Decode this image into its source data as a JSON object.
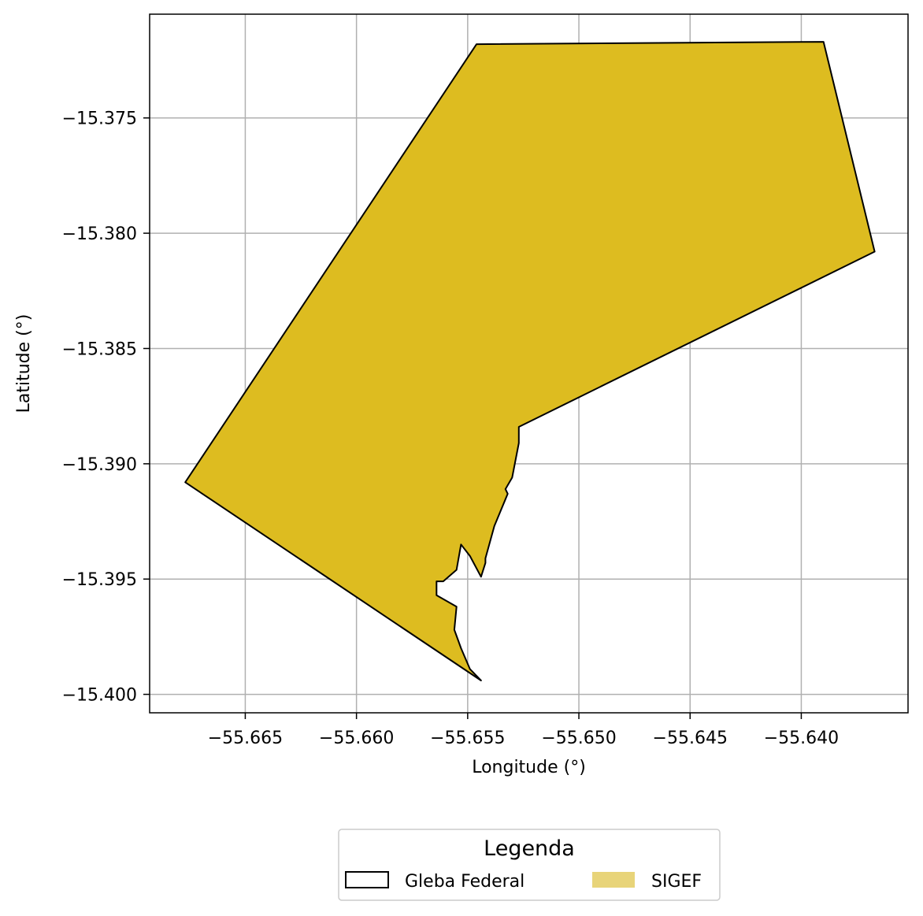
{
  "chart_data": {
    "type": "map",
    "xlabel": "Longitude (°)",
    "ylabel": "Latitude (°)",
    "xlim": [
      -55.6693,
      -55.6352
    ],
    "ylim": [
      -15.4008,
      -15.3705
    ],
    "x_ticks": [
      -55.665,
      -55.66,
      -55.655,
      -55.65,
      -55.645,
      -55.64
    ],
    "x_tick_labels": [
      "−55.665",
      "−55.660",
      "−55.655",
      "−55.650",
      "−55.645",
      "−55.640"
    ],
    "y_ticks": [
      -15.375,
      -15.38,
      -15.385,
      -15.39,
      -15.395,
      -15.4
    ],
    "y_tick_labels": [
      "−15.375",
      "−15.380",
      "−15.385",
      "−15.390",
      "−15.395",
      "−15.400"
    ],
    "grid": true,
    "legend": {
      "title": "Legenda",
      "placement": "bottom-center",
      "entries": [
        {
          "label": "Gleba Federal",
          "style": "outline",
          "color": "#000000"
        },
        {
          "label": "SIGEF",
          "style": "fill",
          "color": "#e8d479"
        }
      ]
    },
    "layers": [
      {
        "name": "SIGEF",
        "fill": "#ddbc20",
        "stroke": "#000000",
        "polygon": [
          [
            -55.6546,
            -15.3718
          ],
          [
            -55.639,
            -15.3717
          ],
          [
            -55.6367,
            -15.3808
          ],
          [
            -55.6527,
            -15.3884
          ],
          [
            -55.6527,
            -15.3891
          ],
          [
            -55.653,
            -15.3906
          ],
          [
            -55.6533,
            -15.3911
          ],
          [
            -55.6532,
            -15.3913
          ],
          [
            -55.6538,
            -15.3927
          ],
          [
            -55.6542,
            -15.3941
          ],
          [
            -55.6542,
            -15.3943
          ],
          [
            -55.6544,
            -15.3949
          ],
          [
            -55.6549,
            -15.394
          ],
          [
            -55.6553,
            -15.3935
          ],
          [
            -55.6555,
            -15.3946
          ],
          [
            -55.6561,
            -15.3951
          ],
          [
            -55.6564,
            -15.3951
          ],
          [
            -55.6564,
            -15.3957
          ],
          [
            -55.6555,
            -15.3962
          ],
          [
            -55.6556,
            -15.3972
          ],
          [
            -55.6553,
            -15.398
          ],
          [
            -55.6549,
            -15.3989
          ],
          [
            -55.6544,
            -15.3994
          ],
          [
            -55.6677,
            -15.3908
          ],
          [
            -55.6546,
            -15.3718
          ]
        ]
      }
    ]
  },
  "colors": {
    "sigef_fill": "#ddbc20",
    "legend_sigef_swatch": "#e8d479",
    "grid": "#b0b0b0",
    "outline": "#000000"
  }
}
